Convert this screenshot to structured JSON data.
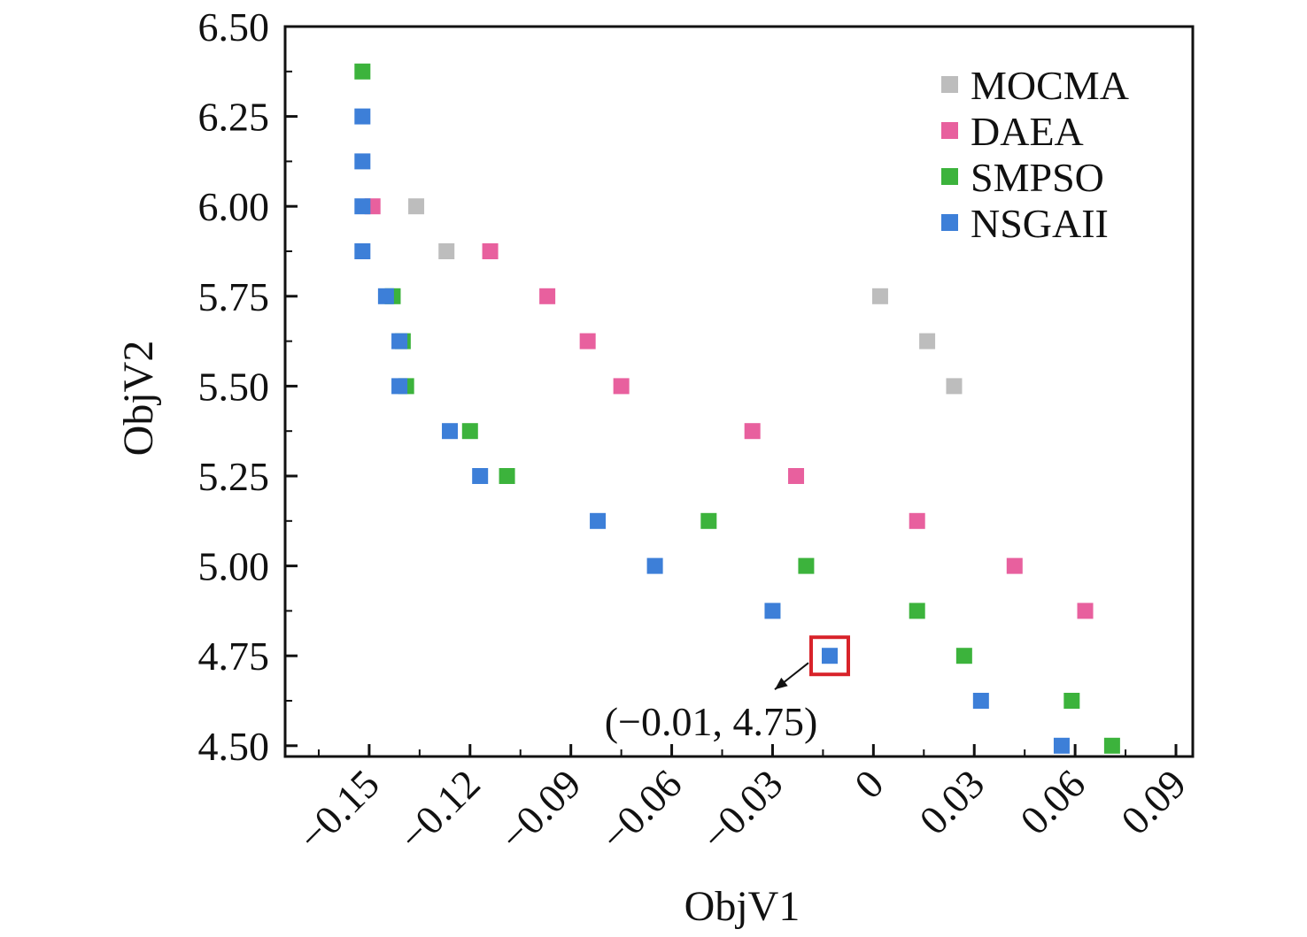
{
  "chart_data": {
    "type": "scatter",
    "xlabel": "ObjV1",
    "ylabel": "ObjV2",
    "xlim": [
      -0.175,
      0.095
    ],
    "ylim": [
      4.47,
      6.5
    ],
    "x_ticks": [
      -0.15,
      -0.12,
      -0.09,
      -0.06,
      -0.03,
      0,
      0.03,
      0.06,
      0.09
    ],
    "x_tick_labels": [
      "−0.15",
      "−0.12",
      "−0.09",
      "−0.06",
      "−0.03",
      "0",
      "0.03",
      "0.06",
      "0.09"
    ],
    "y_ticks": [
      4.5,
      4.75,
      5.0,
      5.25,
      5.5,
      5.75,
      6.0,
      6.25,
      6.5
    ],
    "y_tick_labels": [
      "4.50",
      "4.75",
      "5.00",
      "5.25",
      "5.50",
      "5.75",
      "6.00",
      "6.25",
      "6.50"
    ],
    "grid": false,
    "legend_position": "top-right",
    "series": [
      {
        "name": "MOCMA",
        "color": "#bdbdbd",
        "points": [
          [
            -0.136,
            6.0
          ],
          [
            -0.127,
            5.875
          ],
          [
            0.002,
            5.75
          ],
          [
            0.016,
            5.625
          ],
          [
            0.024,
            5.5
          ]
        ]
      },
      {
        "name": "DAEA",
        "color": "#e8609e",
        "points": [
          [
            -0.149,
            6.0
          ],
          [
            -0.114,
            5.875
          ],
          [
            -0.097,
            5.75
          ],
          [
            -0.085,
            5.625
          ],
          [
            -0.075,
            5.5
          ],
          [
            -0.036,
            5.375
          ],
          [
            -0.023,
            5.25
          ],
          [
            0.013,
            5.125
          ],
          [
            0.042,
            5.0
          ],
          [
            0.063,
            4.875
          ]
        ]
      },
      {
        "name": "SMPSO",
        "color": "#3cb33c",
        "points": [
          [
            -0.152,
            6.375
          ],
          [
            -0.143,
            5.75
          ],
          [
            -0.14,
            5.625
          ],
          [
            -0.139,
            5.5
          ],
          [
            -0.12,
            5.375
          ],
          [
            -0.109,
            5.25
          ],
          [
            -0.049,
            5.125
          ],
          [
            -0.02,
            5.0
          ],
          [
            0.013,
            4.875
          ],
          [
            0.027,
            4.75
          ],
          [
            0.059,
            4.625
          ],
          [
            0.071,
            4.5
          ]
        ]
      },
      {
        "name": "NSGAII",
        "color": "#3d7fd8",
        "points": [
          [
            -0.152,
            6.25
          ],
          [
            -0.152,
            6.125
          ],
          [
            -0.152,
            6.0
          ],
          [
            -0.152,
            5.875
          ],
          [
            -0.145,
            5.75
          ],
          [
            -0.141,
            5.625
          ],
          [
            -0.141,
            5.5
          ],
          [
            -0.126,
            5.375
          ],
          [
            -0.117,
            5.25
          ],
          [
            -0.082,
            5.125
          ],
          [
            -0.065,
            5.0
          ],
          [
            -0.03,
            4.875
          ],
          [
            -0.013,
            4.75
          ],
          [
            0.032,
            4.625
          ],
          [
            0.056,
            4.5
          ]
        ]
      }
    ],
    "annotation": {
      "text": "(−0.01, 4.75)",
      "x": -0.013,
      "y": 4.75,
      "highlight_color": "#d8232a"
    }
  }
}
